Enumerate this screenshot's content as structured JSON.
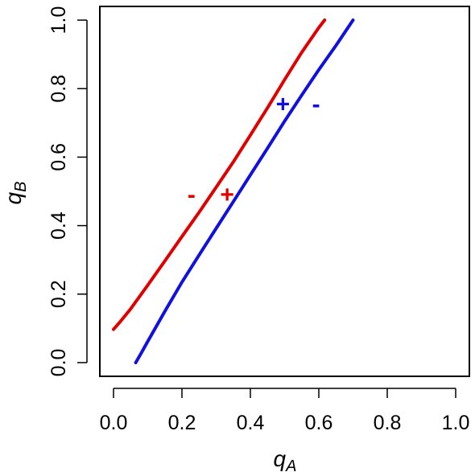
{
  "chart_data": {
    "type": "line",
    "xlabel": "q",
    "xlabel_sub": "A",
    "ylabel": "q",
    "ylabel_sub": "B",
    "xlim": [
      -0.04,
      1.04
    ],
    "ylim": [
      -0.04,
      1.04
    ],
    "xticks": [
      0.0,
      0.2,
      0.4,
      0.6,
      0.8,
      1.0
    ],
    "yticks": [
      0.0,
      0.2,
      0.4,
      0.6,
      0.8,
      1.0
    ],
    "xtick_labels": [
      "0.0",
      "0.2",
      "0.4",
      "0.6",
      "0.8",
      "1.0"
    ],
    "ytick_labels": [
      "0.0",
      "0.2",
      "0.4",
      "0.6",
      "0.8",
      "1.0"
    ],
    "grid": false,
    "series": [
      {
        "color": "#e00000",
        "points": [
          [
            0.0,
            0.097
          ],
          [
            0.02,
            0.12
          ],
          [
            0.05,
            0.157
          ],
          [
            0.1,
            0.226
          ],
          [
            0.15,
            0.297
          ],
          [
            0.2,
            0.368
          ],
          [
            0.25,
            0.439
          ],
          [
            0.3,
            0.512
          ],
          [
            0.35,
            0.586
          ],
          [
            0.4,
            0.664
          ],
          [
            0.45,
            0.744
          ],
          [
            0.5,
            0.826
          ],
          [
            0.55,
            0.906
          ],
          [
            0.6,
            0.978
          ],
          [
            0.617,
            1.0
          ]
        ]
      },
      {
        "color": "#1010e0",
        "points": [
          [
            0.065,
            0.0
          ],
          [
            0.08,
            0.026
          ],
          [
            0.1,
            0.062
          ],
          [
            0.15,
            0.15
          ],
          [
            0.2,
            0.235
          ],
          [
            0.25,
            0.314
          ],
          [
            0.3,
            0.392
          ],
          [
            0.35,
            0.47
          ],
          [
            0.4,
            0.548
          ],
          [
            0.45,
            0.626
          ],
          [
            0.5,
            0.705
          ],
          [
            0.55,
            0.781
          ],
          [
            0.6,
            0.855
          ],
          [
            0.65,
            0.926
          ],
          [
            0.7,
            1.0
          ]
        ]
      }
    ],
    "annotations": [
      {
        "text": "-",
        "x": 0.228,
        "y": 0.49,
        "color": "#e00000"
      },
      {
        "text": "+",
        "x": 0.332,
        "y": 0.49,
        "color": "#e00000"
      },
      {
        "text": "+",
        "x": 0.495,
        "y": 0.753,
        "color": "#1010e0"
      },
      {
        "text": "-",
        "x": 0.592,
        "y": 0.753,
        "color": "#1010e0"
      }
    ]
  }
}
